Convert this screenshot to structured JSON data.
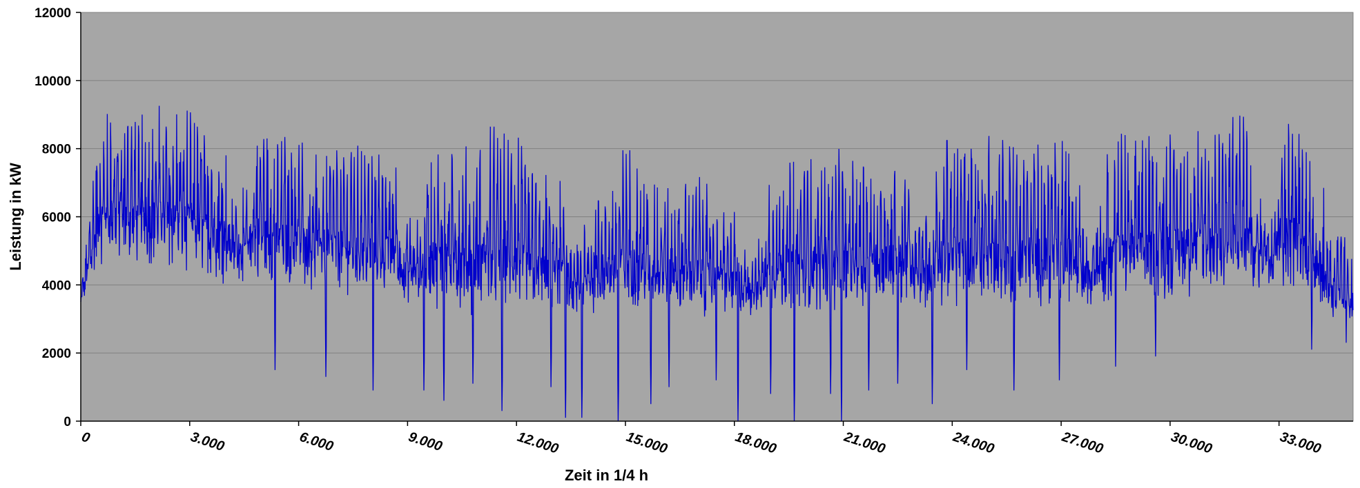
{
  "chart_data": {
    "type": "line",
    "title": "",
    "xlabel": "Zeit in 1/4 h",
    "ylabel": "Leistung in kW",
    "xlim": [
      0,
      35040
    ],
    "ylim": [
      0,
      12000
    ],
    "x_ticks": [
      {
        "value": 0,
        "label": "0"
      },
      {
        "value": 3000,
        "label": "3.000"
      },
      {
        "value": 6000,
        "label": "6.000"
      },
      {
        "value": 9000,
        "label": "9.000"
      },
      {
        "value": 12000,
        "label": "12.000"
      },
      {
        "value": 15000,
        "label": "15.000"
      },
      {
        "value": 18000,
        "label": "18.000"
      },
      {
        "value": 21000,
        "label": "21.000"
      },
      {
        "value": 24000,
        "label": "24.000"
      },
      {
        "value": 27000,
        "label": "27.000"
      },
      {
        "value": 30000,
        "label": "30.000"
      },
      {
        "value": 33000,
        "label": "33.000"
      }
    ],
    "y_ticks": [
      {
        "value": 0,
        "label": "0"
      },
      {
        "value": 2000,
        "label": "2000"
      },
      {
        "value": 4000,
        "label": "4000"
      },
      {
        "value": 6000,
        "label": "6000"
      },
      {
        "value": 8000,
        "label": "8000"
      },
      {
        "value": 10000,
        "label": "10000"
      },
      {
        "value": 12000,
        "label": "12000"
      }
    ],
    "grid": true,
    "plot_background": "#A6A6A6",
    "line_color": "#0000CC",
    "series": [
      {
        "x": [
          0,
          500,
          1000,
          1500,
          2000,
          2500,
          3000,
          3500,
          4000,
          4500,
          5000,
          5500,
          6000,
          6500,
          7000,
          7500,
          8000,
          8500,
          9000,
          9500,
          10000,
          10500,
          11000,
          11500,
          12000,
          12500,
          13000,
          13500,
          14000,
          14500,
          15000,
          15500,
          16000,
          16500,
          17000,
          17500,
          18000,
          18500,
          19000,
          19500,
          20000,
          20500,
          21000,
          21500,
          22000,
          22500,
          23000,
          23500,
          24000,
          24500,
          25000,
          25500,
          26000,
          26500,
          27000,
          27500,
          28000,
          28500,
          29000,
          29500,
          30000,
          30500,
          31000,
          31500,
          32000,
          32500,
          33000,
          33500,
          34000,
          34500,
          35040
        ],
        "peak": [
          3800,
          9200,
          9600,
          9300,
          9300,
          9600,
          9400,
          9000,
          8900,
          9200,
          9000,
          8600,
          8600,
          8300,
          8300,
          8200,
          8300,
          8100,
          8000,
          7900,
          8300,
          8000,
          8500,
          8900,
          8700,
          7800,
          7500,
          7000,
          8000,
          7000,
          8300,
          7600,
          7400,
          7000,
          7400,
          6800,
          6200,
          7100,
          7500,
          8000,
          7800,
          8100,
          8000,
          8000,
          8300,
          8200,
          8300,
          8600,
          8700,
          8700,
          8500,
          8600,
          8700,
          8600,
          8400,
          8500,
          8600,
          8800,
          8800,
          8700,
          8800,
          8900,
          9000,
          9100,
          9300,
          9200,
          9200,
          9300,
          7600,
          6100,
          5300
        ],
        "base": [
          3500,
          5000,
          5000,
          5000,
          5000,
          4800,
          4700,
          4600,
          4500,
          4500,
          4400,
          4300,
          4300,
          4200,
          4200,
          4100,
          4000,
          4000,
          3900,
          3800,
          3700,
          3600,
          3500,
          3500,
          3500,
          3400,
          3400,
          3400,
          3500,
          3500,
          3500,
          3500,
          3500,
          3500,
          3400,
          3400,
          3400,
          3400,
          3500,
          3500,
          3500,
          3500,
          3600,
          3600,
          3600,
          3600,
          3700,
          3700,
          3700,
          3700,
          3700,
          3700,
          3700,
          3700,
          3700,
          3800,
          3800,
          3800,
          3800,
          3900,
          3900,
          4000,
          4000,
          4100,
          4200,
          4300,
          4300,
          4300,
          3800,
          3000,
          3000
        ],
        "dips": [
          {
            "x": 5350,
            "y": 1500
          },
          {
            "x": 6750,
            "y": 1300
          },
          {
            "x": 8050,
            "y": 900
          },
          {
            "x": 9450,
            "y": 900
          },
          {
            "x": 10000,
            "y": 600
          },
          {
            "x": 10800,
            "y": 1100
          },
          {
            "x": 11600,
            "y": 300
          },
          {
            "x": 12950,
            "y": 1000
          },
          {
            "x": 13350,
            "y": 100
          },
          {
            "x": 13800,
            "y": 100
          },
          {
            "x": 14800,
            "y": 0
          },
          {
            "x": 15700,
            "y": 500
          },
          {
            "x": 16200,
            "y": 1000
          },
          {
            "x": 17500,
            "y": 1200
          },
          {
            "x": 18100,
            "y": 0
          },
          {
            "x": 19000,
            "y": 800
          },
          {
            "x": 19650,
            "y": 0
          },
          {
            "x": 20650,
            "y": 800
          },
          {
            "x": 20950,
            "y": 0
          },
          {
            "x": 21700,
            "y": 900
          },
          {
            "x": 22500,
            "y": 1100
          },
          {
            "x": 23450,
            "y": 500
          },
          {
            "x": 24400,
            "y": 1500
          },
          {
            "x": 25700,
            "y": 900
          },
          {
            "x": 26950,
            "y": 1200
          },
          {
            "x": 28500,
            "y": 1600
          },
          {
            "x": 29600,
            "y": 1900
          },
          {
            "x": 33900,
            "y": 2100
          },
          {
            "x": 34850,
            "y": 2300
          }
        ]
      }
    ]
  }
}
